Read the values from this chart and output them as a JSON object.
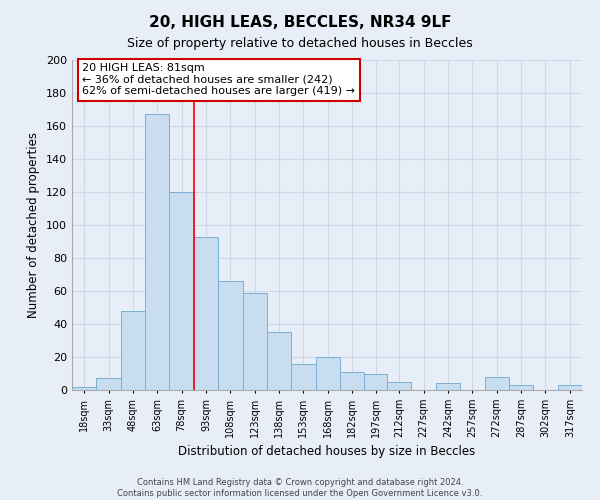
{
  "title": "20, HIGH LEAS, BECCLES, NR34 9LF",
  "subtitle": "Size of property relative to detached houses in Beccles",
  "xlabel": "Distribution of detached houses by size in Beccles",
  "ylabel": "Number of detached properties",
  "bar_color": "#c8ddf0",
  "bar_edge_color": "#7aafd4",
  "vline_color": "red",
  "bin_edges": [
    10.5,
    25.5,
    40.5,
    55.5,
    70.5,
    85.5,
    100.5,
    115.5,
    130.5,
    145.5,
    160.5,
    175.5,
    190.5,
    204.5,
    219.5,
    234.5,
    249.5,
    264.5,
    279.5,
    294.5,
    309.5,
    324.5
  ],
  "bin_labels": [
    "18sqm",
    "33sqm",
    "48sqm",
    "63sqm",
    "78sqm",
    "93sqm",
    "108sqm",
    "123sqm",
    "138sqm",
    "153sqm",
    "168sqm",
    "182sqm",
    "197sqm",
    "212sqm",
    "227sqm",
    "242sqm",
    "257sqm",
    "272sqm",
    "287sqm",
    "302sqm",
    "317sqm"
  ],
  "counts": [
    2,
    7,
    48,
    167,
    120,
    93,
    66,
    59,
    35,
    16,
    20,
    11,
    10,
    5,
    0,
    4,
    0,
    8,
    3,
    0,
    3
  ],
  "ylim": [
    0,
    200
  ],
  "yticks": [
    0,
    20,
    40,
    60,
    80,
    100,
    120,
    140,
    160,
    180,
    200
  ],
  "annotation_title": "20 HIGH LEAS: 81sqm",
  "annotation_line1": "← 36% of detached houses are smaller (242)",
  "annotation_line2": "62% of semi-detached houses are larger (419) →",
  "annotation_box_color": "white",
  "annotation_box_edge": "#cc0000",
  "footnote1": "Contains HM Land Registry data © Crown copyright and database right 2024.",
  "footnote2": "Contains public sector information licensed under the Open Government Licence v3.0.",
  "background_color": "#e8eef8",
  "grid_color": "#d0d8e8"
}
